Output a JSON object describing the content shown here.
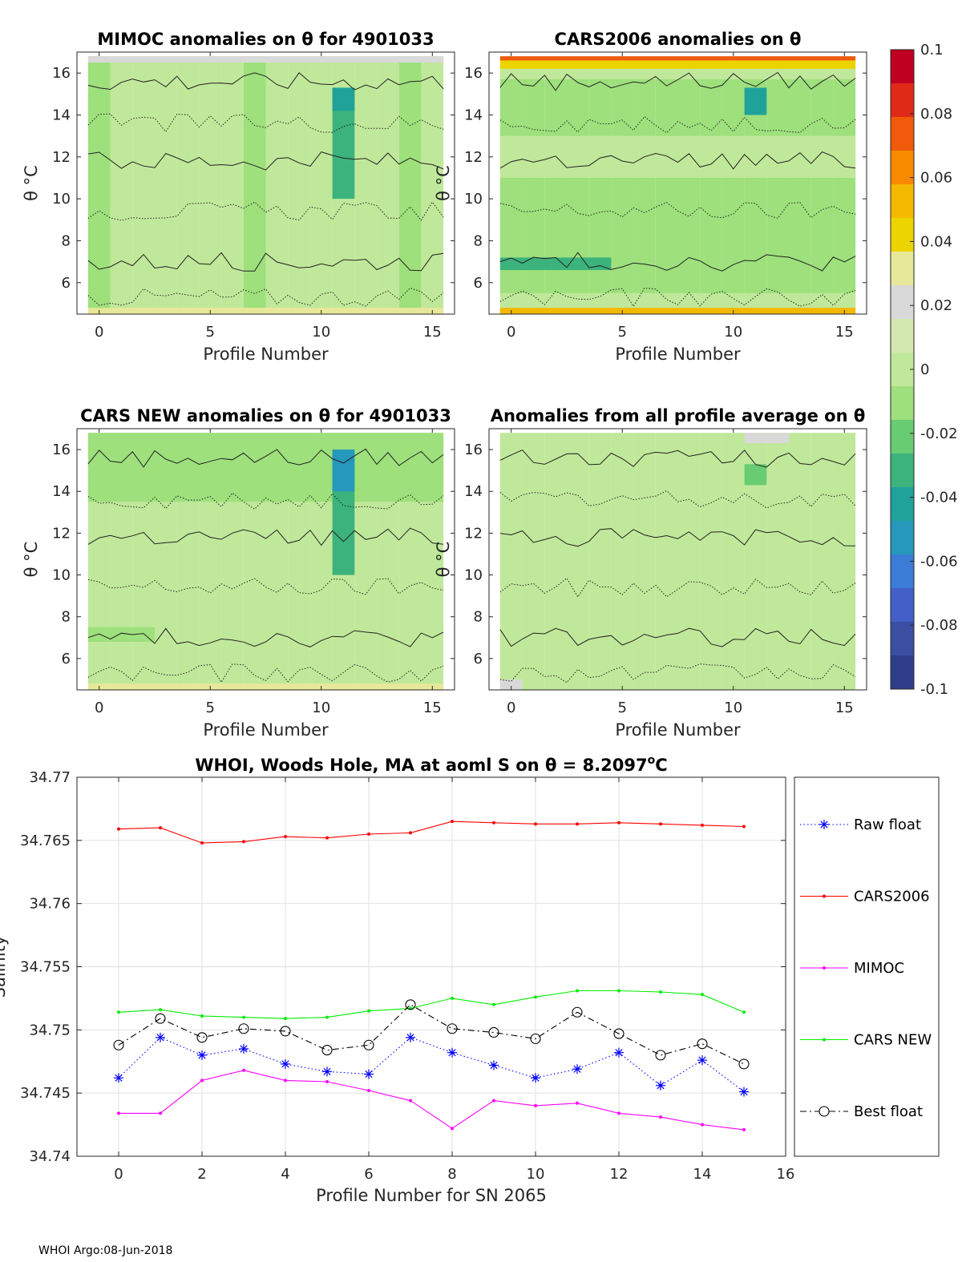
{
  "chart_data": [
    {
      "type": "heatmap",
      "id": "mimoc",
      "title": "MIMOC anomalies on θ  for 4901033",
      "xlabel": "Profile Number",
      "ylabel": "θ °C",
      "xlim": [
        -1,
        16
      ],
      "ylim": [
        4.5,
        17
      ],
      "xticks": [
        0,
        5,
        10,
        15
      ],
      "yticks": [
        6,
        8,
        10,
        12,
        14,
        16
      ],
      "xticklabels": [
        "0",
        "5",
        "10",
        "15"
      ],
      "yticklabels": [
        "6",
        "8",
        "10",
        "12",
        "14",
        "16"
      ],
      "columns": 16,
      "theta_range": [
        4.5,
        16.8
      ],
      "field_value": -0.003,
      "features": [
        {
          "p0": -0.5,
          "p1": 15.5,
          "t0": 16.5,
          "t1": 16.8,
          "value": 0.025
        },
        {
          "p0": -0.5,
          "p1": 15.5,
          "t0": 4.5,
          "t1": 4.8,
          "value": 0.028
        },
        {
          "p0": 10.5,
          "p1": 11.5,
          "t0": 10.0,
          "t1": 15.3,
          "value": -0.03
        },
        {
          "p0": 10.5,
          "p1": 11.5,
          "t0": 14.2,
          "t1": 15.3,
          "value": -0.045
        },
        {
          "p0": -0.5,
          "p1": 0.5,
          "t0": 14.0,
          "t1": 15.0,
          "value": -0.012
        }
      ]
    },
    {
      "type": "heatmap",
      "id": "cars2006",
      "title": "CARS2006 anomalies on θ",
      "xlabel": "Profile Number",
      "ylabel": "θ °C",
      "xlim": [
        -1,
        16
      ],
      "ylim": [
        4.5,
        17
      ],
      "xticks": [
        0,
        5,
        10,
        15
      ],
      "yticks": [
        6,
        8,
        10,
        12,
        14,
        16
      ],
      "xticklabels": [
        "0",
        "5",
        "10",
        "15"
      ],
      "yticklabels": [
        "6",
        "8",
        "10",
        "12",
        "14",
        "16"
      ],
      "columns": 16,
      "theta_range": [
        4.5,
        16.8
      ],
      "field_value": -0.012,
      "features": [
        {
          "p0": -0.5,
          "p1": 15.5,
          "t0": 16.6,
          "t1": 16.8,
          "value": 0.07
        },
        {
          "p0": -0.5,
          "p1": 15.5,
          "t0": 16.2,
          "t1": 16.6,
          "value": 0.045
        },
        {
          "p0": -0.5,
          "p1": 15.5,
          "t0": 15.7,
          "t1": 16.2,
          "value": 0.0
        },
        {
          "p0": -0.5,
          "p1": 15.5,
          "t0": 11.0,
          "t1": 13.0,
          "value": 0.0
        },
        {
          "p0": -0.5,
          "p1": 15.5,
          "t0": 4.5,
          "t1": 5.5,
          "value": 0.0
        },
        {
          "p0": -0.5,
          "p1": 15.5,
          "t0": 4.5,
          "t1": 4.8,
          "value": 0.05
        },
        {
          "p0": -0.5,
          "p1": 4.5,
          "t0": 6.6,
          "t1": 7.2,
          "value": -0.03
        },
        {
          "p0": 10.5,
          "p1": 11.5,
          "t0": 14.0,
          "t1": 15.3,
          "value": -0.04
        }
      ]
    },
    {
      "type": "heatmap",
      "id": "cars_new",
      "title": "CARS NEW anomalies on θ for 4901033",
      "xlabel": "Profile Number",
      "ylabel": "θ °C",
      "xlim": [
        -1,
        16
      ],
      "ylim": [
        4.5,
        17
      ],
      "xticks": [
        0,
        5,
        10,
        15
      ],
      "yticks": [
        6,
        8,
        10,
        12,
        14,
        16
      ],
      "xticklabels": [
        "0",
        "5",
        "10",
        "15"
      ],
      "yticklabels": [
        "6",
        "8",
        "10",
        "12",
        "14",
        "16"
      ],
      "columns": 16,
      "theta_range": [
        4.5,
        16.8
      ],
      "field_value": -0.002,
      "features": [
        {
          "p0": -0.5,
          "p1": 15.5,
          "t0": 13.5,
          "t1": 16.8,
          "value": -0.015
        },
        {
          "p0": 10.5,
          "p1": 11.5,
          "t0": 10.0,
          "t1": 16.0,
          "value": -0.03
        },
        {
          "p0": 10.5,
          "p1": 11.5,
          "t0": 14.0,
          "t1": 16.0,
          "value": -0.05
        },
        {
          "p0": -0.5,
          "p1": 15.5,
          "t0": 4.5,
          "t1": 4.8,
          "value": 0.03
        },
        {
          "p0": -0.5,
          "p1": 2.5,
          "t0": 6.8,
          "t1": 7.5,
          "value": -0.012
        }
      ]
    },
    {
      "type": "heatmap",
      "id": "avg",
      "title": "Anomalies from all profile average on θ",
      "xlabel": "Profile Number",
      "ylabel": "θ °C",
      "xlim": [
        -1,
        16
      ],
      "ylim": [
        4.5,
        17
      ],
      "xticks": [
        0,
        5,
        10,
        15
      ],
      "yticks": [
        6,
        8,
        10,
        12,
        14,
        16
      ],
      "xticklabels": [
        "0",
        "5",
        "10",
        "15"
      ],
      "yticklabels": [
        "6",
        "8",
        "10",
        "12",
        "14",
        "16"
      ],
      "columns": 16,
      "theta_range": [
        4.5,
        16.8
      ],
      "field_value": 0.0,
      "features": [
        {
          "p0": 10.5,
          "p1": 12.5,
          "t0": 16.3,
          "t1": 16.8,
          "value": 0.022
        },
        {
          "p0": 10.5,
          "p1": 11.5,
          "t0": 14.3,
          "t1": 15.3,
          "value": -0.025
        },
        {
          "p0": -0.5,
          "p1": 0.5,
          "t0": 4.5,
          "t1": 5.0,
          "value": 0.02
        }
      ]
    },
    {
      "type": "line",
      "id": "salinity",
      "title": "WHOI, Woods Hole, MA at aoml S on θ = 8.2097°C",
      "title_main": "WHOI, Woods Hole, MA at aoml S on θ = 8.2097",
      "title_sup": "o",
      "title_unit": "C",
      "xlabel": "Profile Number for SN 2065",
      "ylabel": "Salinity",
      "xlim": [
        -1,
        16
      ],
      "ylim": [
        34.74,
        34.77
      ],
      "xticks": [
        0,
        2,
        4,
        6,
        8,
        10,
        12,
        14,
        16
      ],
      "yticks": [
        34.74,
        34.745,
        34.75,
        34.755,
        34.76,
        34.765,
        34.77
      ],
      "xticklabels": [
        "0",
        "2",
        "4",
        "6",
        "8",
        "10",
        "12",
        "14",
        "16"
      ],
      "yticklabels": [
        "34.74",
        "34.745",
        "34.75",
        "34.755",
        "34.76",
        "34.765",
        "34.77"
      ],
      "grid": true,
      "legend_position": "outside-right",
      "x": [
        0,
        1,
        2,
        3,
        4,
        5,
        6,
        7,
        8,
        9,
        10,
        11,
        12,
        13,
        14,
        15
      ],
      "series": [
        {
          "name": "Raw float",
          "color": "#0000ff",
          "dash": "dotted",
          "marker": "asterisk",
          "values": [
            34.7462,
            34.7494,
            34.748,
            34.7485,
            34.7473,
            34.7467,
            34.7465,
            34.7494,
            34.7482,
            34.7472,
            34.7462,
            34.7469,
            34.7482,
            34.7456,
            34.7476,
            34.7451
          ]
        },
        {
          "name": "CARS2006",
          "color": "#ff0000",
          "dash": "solid",
          "marker": "dot",
          "values": [
            34.7659,
            34.766,
            34.7648,
            34.7649,
            34.7653,
            34.7652,
            34.7655,
            34.7656,
            34.7665,
            34.7664,
            34.7663,
            34.7663,
            34.7664,
            34.7663,
            34.7662,
            34.7661
          ]
        },
        {
          "name": "MIMOC",
          "color": "#ff00ff",
          "dash": "solid",
          "marker": "dot",
          "values": [
            34.7434,
            34.7434,
            34.746,
            34.7468,
            34.746,
            34.7459,
            34.7452,
            34.7444,
            34.7422,
            34.7444,
            34.744,
            34.7442,
            34.7434,
            34.7431,
            34.7425,
            34.7421
          ]
        },
        {
          "name": "CARS NEW",
          "color": "#00ee00",
          "dash": "solid",
          "marker": "dot",
          "values": [
            34.7514,
            34.7516,
            34.7511,
            34.751,
            34.7509,
            34.751,
            34.7515,
            34.7517,
            34.7525,
            34.752,
            34.7526,
            34.7531,
            34.7531,
            34.753,
            34.7528,
            34.7514
          ]
        },
        {
          "name": "Best float",
          "color": "#000000",
          "dash": "dashdot",
          "marker": "circle",
          "values": [
            34.7488,
            34.7509,
            34.7494,
            34.7501,
            34.7499,
            34.7484,
            34.7488,
            34.752,
            34.7501,
            34.7498,
            34.7493,
            34.7514,
            34.7497,
            34.748,
            34.7489,
            34.7473
          ]
        }
      ]
    }
  ],
  "colorbar": {
    "range": [
      -0.1,
      0.1
    ],
    "ticks": [
      0.1,
      0.08,
      0.06,
      0.04,
      0.02,
      0,
      -0.02,
      -0.04,
      -0.06,
      -0.08,
      -0.1
    ],
    "ticklabels": [
      "0.1",
      "0.08",
      "0.06",
      "0.04",
      "0.02",
      "0",
      "-0.02",
      "-0.04",
      "-0.06",
      "-0.08",
      "-0.1"
    ],
    "colors": [
      "#c00020",
      "#e02a18",
      "#f05a0a",
      "#f88a00",
      "#f5b800",
      "#ecd400",
      "#e8e89a",
      "#d9d9d9",
      "#d3e8b0",
      "#c0e89a",
      "#9ee07c",
      "#68cc72",
      "#3cb27c",
      "#20a29a",
      "#2598bc",
      "#3a7cd6",
      "#4260c8",
      "#3a4ea2",
      "#2e3e8a"
    ]
  },
  "footer": {
    "text": "WHOI Argo:08-Jun-2018"
  }
}
